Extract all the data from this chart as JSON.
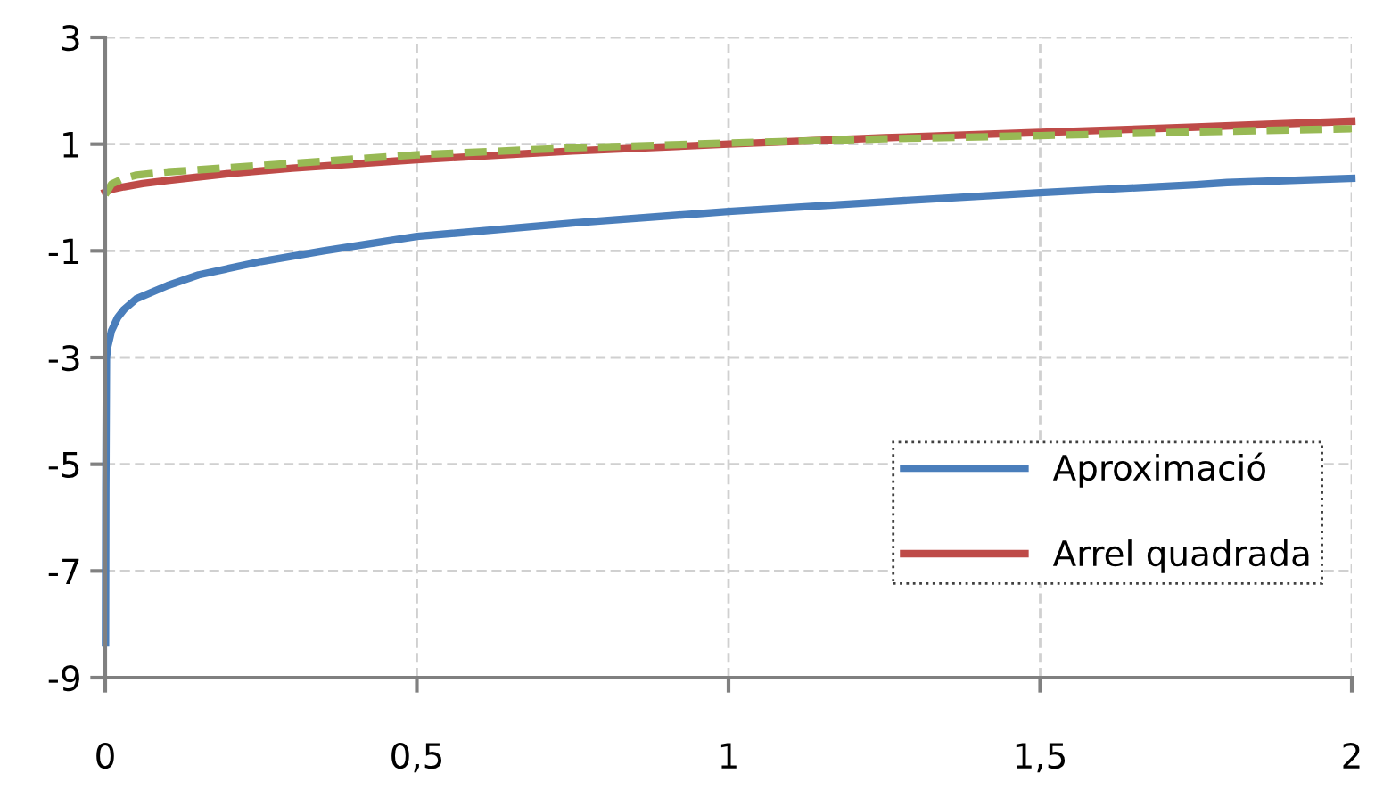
{
  "chart_data": {
    "type": "line",
    "xlim": [
      0,
      2
    ],
    "ylim": [
      -9,
      3
    ],
    "xticks": [
      0,
      {
        "value": 0.5,
        "label": "0,5"
      },
      1,
      {
        "value": 1.5,
        "label": "1,5"
      },
      2
    ],
    "yticks": [
      {
        "value": -9,
        "label": "-9"
      },
      {
        "value": -7,
        "label": "-7"
      },
      {
        "value": -5,
        "label": "-5"
      },
      {
        "value": -3,
        "label": "-3"
      },
      {
        "value": -1,
        "label": "-1"
      },
      1,
      3
    ],
    "grid": true,
    "legend": "lower right",
    "marker": "none",
    "series": [
      {
        "name": "Aproximació",
        "color": "#4a7ebb",
        "line_style": "solid",
        "x": [
          0.0005,
          0.001,
          0.002,
          0.004,
          0.01,
          0.02,
          0.03,
          0.05,
          0.1,
          0.15,
          0.25,
          0.35,
          0.5,
          0.75,
          1,
          1.25,
          1.5,
          1.75,
          1.8,
          2
        ],
        "values": [
          -8.35,
          -5.5,
          -3.0,
          -2.8,
          -2.5,
          -2.25,
          -2.1,
          -1.9,
          -1.65,
          -1.45,
          -1.2,
          -1.0,
          -0.73,
          -0.48,
          -0.26,
          -0.08,
          0.09,
          0.24,
          0.28,
          0.36
        ]
      },
      {
        "name": "Arrel quadrada",
        "color": "#be4b48",
        "line_style": "solid",
        "x": [
          0,
          0.01,
          0.03,
          0.06,
          0.1,
          0.2,
          0.3,
          0.5,
          0.75,
          1,
          1.25,
          1.5,
          1.75,
          2
        ],
        "values": [
          0.1,
          0.15,
          0.2,
          0.26,
          0.32,
          0.45,
          0.55,
          0.71,
          0.87,
          1.0,
          1.12,
          1.22,
          1.32,
          1.43
        ]
      },
      {
        "color": "#98b954",
        "line_style": "dashed",
        "x": [
          0,
          0.01,
          0.03,
          0.05,
          0.1,
          0.25,
          0.5,
          0.75,
          1,
          1.25,
          1.5,
          1.75,
          2
        ],
        "values": [
          0.05,
          0.25,
          0.36,
          0.42,
          0.48,
          0.6,
          0.8,
          0.93,
          1.02,
          1.1,
          1.16,
          1.23,
          1.29
        ]
      }
    ]
  }
}
